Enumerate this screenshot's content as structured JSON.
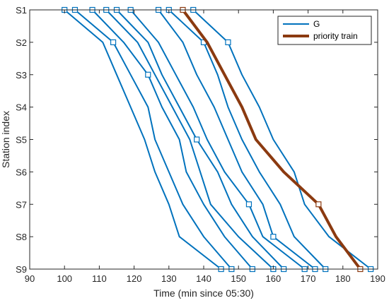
{
  "chart_data": {
    "type": "line",
    "title": "",
    "xlabel": "Time (min since 05:30)",
    "ylabel": "Station index",
    "xlim": [
      90,
      190
    ],
    "xticks": [
      90,
      100,
      110,
      120,
      130,
      140,
      150,
      160,
      170,
      180,
      190
    ],
    "yticks": [
      "S1",
      "S2",
      "S3",
      "S4",
      "S5",
      "S6",
      "S7",
      "S8",
      "S9"
    ],
    "grid": false,
    "legend_position": "top-right",
    "colors": {
      "G": "#0072BD",
      "priority": "#8B3A10",
      "marker_fill": "#ffffff",
      "axis": "#262626"
    },
    "legend": [
      {
        "key": "G",
        "label": "G"
      },
      {
        "key": "priority",
        "label": "priority train"
      }
    ],
    "series": [
      {
        "group": "G",
        "times": [
          100,
          111,
          115,
          119,
          123,
          126,
          130,
          133,
          145
        ],
        "stop_station": null
      },
      {
        "group": "G",
        "times": [
          103,
          114,
          119,
          124,
          126,
          130,
          134,
          140,
          148
        ],
        "stop_station": 2
      },
      {
        "group": "G",
        "times": [
          108,
          117,
          124,
          128,
          133,
          135,
          140,
          146,
          154
        ],
        "stop_station": 3
      },
      {
        "group": "G",
        "times": [
          112,
          121,
          126,
          131,
          136,
          139,
          142,
          150,
          160
        ],
        "stop_station": null
      },
      {
        "group": "G",
        "times": [
          115,
          124,
          128,
          133,
          138,
          144,
          148,
          154,
          163
        ],
        "stop_station": 5
      },
      {
        "group": "G",
        "times": [
          119,
          127,
          132,
          137,
          141,
          146,
          153,
          157,
          169
        ],
        "stop_station": 7
      },
      {
        "group": "G",
        "times": [
          127,
          134,
          138,
          143,
          147,
          151,
          157,
          160,
          172
        ],
        "stop_station": 8
      },
      {
        "group": "G",
        "times": [
          130,
          140,
          144,
          147,
          151,
          156,
          162,
          166,
          175
        ],
        "stop_station": 2
      },
      {
        "group": "G",
        "times": [
          137,
          147,
          151,
          156,
          160,
          166,
          169,
          176,
          188
        ],
        "stop_station": 2
      },
      {
        "group": "priority",
        "times": [
          134,
          141,
          146,
          151,
          155,
          163,
          173,
          178,
          185
        ],
        "stop_station": 7
      }
    ]
  }
}
